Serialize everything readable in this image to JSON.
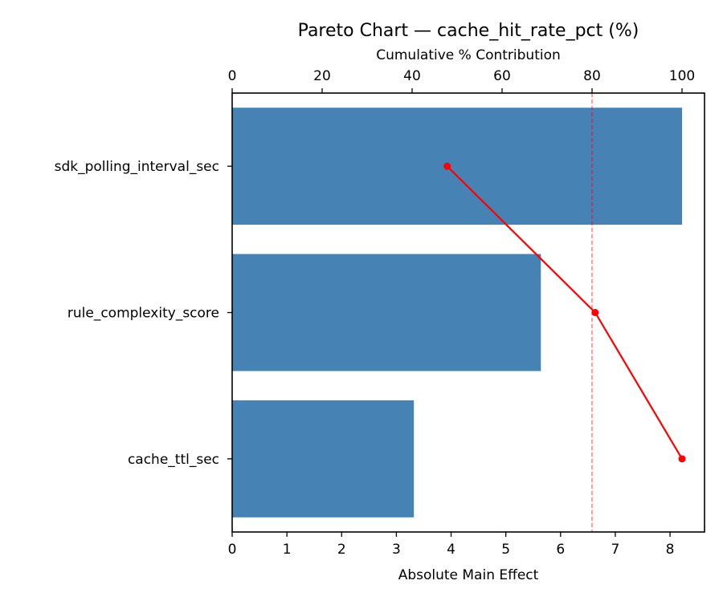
{
  "chart_data": {
    "type": "bar",
    "orientation": "horizontal",
    "title": "Pareto Chart — cache_hit_rate_pct (%)",
    "xlabel": "Absolute Main Effect",
    "x2label": "Cumulative % Contribution",
    "ylabel": "",
    "categories": [
      "sdk_polling_interval_sec",
      "rule_complexity_score",
      "cache_ttl_sec"
    ],
    "series": [
      {
        "name": "Absolute Main Effect",
        "type": "bar",
        "axis": "bottom",
        "color": "#4682b4",
        "values": [
          8.22,
          5.64,
          3.32
        ]
      },
      {
        "name": "Cumulative % Contribution",
        "type": "line",
        "axis": "top",
        "color": "#ff0000",
        "marker": "circle",
        "values": [
          47.8,
          80.7,
          100.0
        ]
      }
    ],
    "reference_lines": [
      {
        "axis": "top",
        "value": 80,
        "style": "dashed",
        "color": "#ff0000",
        "alpha": 0.6
      }
    ],
    "xlim": [
      0,
      8.63
    ],
    "x_ticks": [
      0,
      1,
      2,
      3,
      4,
      5,
      6,
      7,
      8
    ],
    "x2lim": [
      0,
      105
    ],
    "x2_ticks": [
      0,
      20,
      40,
      60,
      80,
      100
    ],
    "grid": false,
    "legend": null
  }
}
